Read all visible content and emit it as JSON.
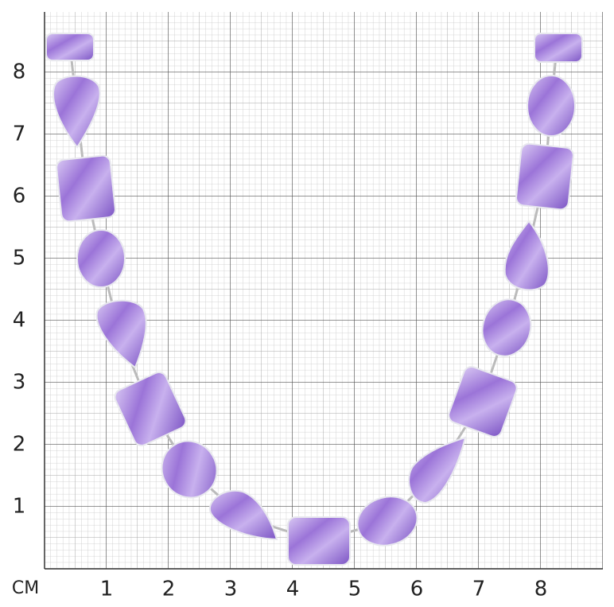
{
  "scale": {
    "unit": "CM",
    "x_ticks": [
      1,
      2,
      3,
      4,
      5,
      6,
      7,
      8
    ],
    "y_ticks": [
      1,
      2,
      3,
      4,
      5,
      6,
      7,
      8
    ]
  }
}
